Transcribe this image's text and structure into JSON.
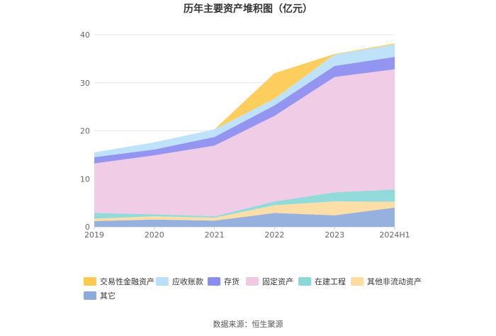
{
  "chart_data": {
    "type": "area",
    "stacked": true,
    "title": "历年主要资产堆积图（亿元）",
    "categories": [
      "2019",
      "2020",
      "2021",
      "2022",
      "2023",
      "2024H1"
    ],
    "ylim": [
      0,
      40
    ],
    "yticks": [
      0,
      10,
      20,
      30,
      40
    ],
    "grid": true,
    "legend_position": "bottom",
    "series": [
      {
        "name": "其它",
        "color": "#8eaadb",
        "values": [
          1.2,
          1.5,
          1.3,
          2.9,
          2.4,
          4.0
        ]
      },
      {
        "name": "其他非流动资产",
        "color": "#fedb9f",
        "values": [
          0.5,
          0.7,
          0.6,
          1.6,
          2.9,
          1.2
        ]
      },
      {
        "name": "在建工程",
        "color": "#8ad8d8",
        "values": [
          1.2,
          0.4,
          0.3,
          0.8,
          1.9,
          2.6
        ]
      },
      {
        "name": "固定资产",
        "color": "#f0c8e4",
        "values": [
          10.3,
          12.3,
          14.7,
          17.8,
          24.0,
          25.0
        ]
      },
      {
        "name": "存货",
        "color": "#8a8cf0",
        "values": [
          1.3,
          1.2,
          1.8,
          2.2,
          2.3,
          2.6
        ]
      },
      {
        "name": "应收账款",
        "color": "#b8e0f8",
        "values": [
          1.0,
          1.5,
          1.6,
          1.4,
          2.4,
          2.6
        ]
      },
      {
        "name": "交易性金融资产",
        "color": "#fdc94f",
        "values": [
          0.0,
          0.0,
          0.0,
          5.3,
          0.1,
          0.2
        ]
      }
    ],
    "legend_order": [
      "交易性金融资产",
      "应收账款",
      "存货",
      "固定资产",
      "在建工程",
      "其他非流动资产",
      "其它"
    ]
  },
  "source": "数据来源：恒生聚源"
}
